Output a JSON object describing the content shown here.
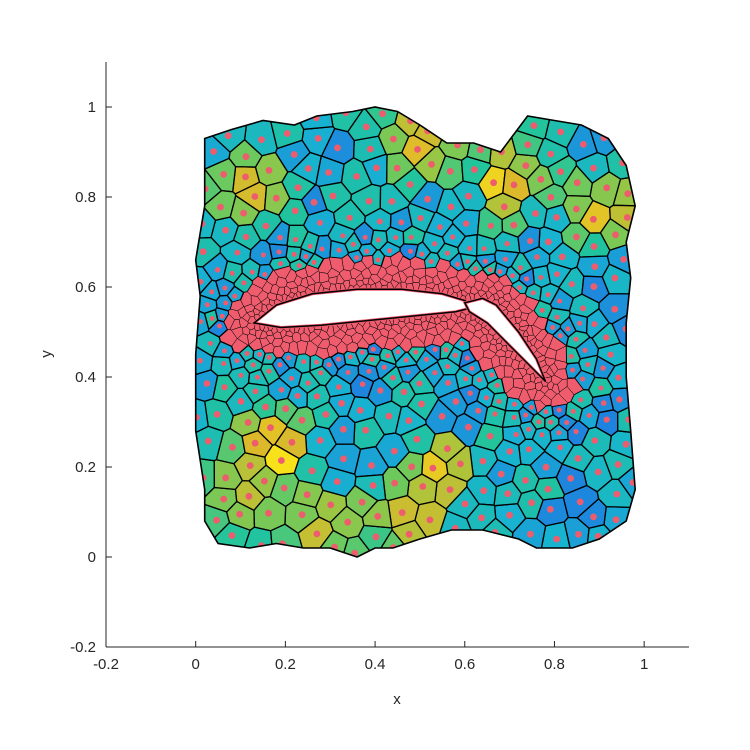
{
  "chart_data": {
    "type": "heatmap",
    "title": "",
    "xlabel": "x",
    "ylabel": "y",
    "xlim": [
      -0.2,
      1.1
    ],
    "ylim": [
      -0.2,
      1.1
    ],
    "xticks": [
      -0.2,
      0,
      0.2,
      0.4,
      0.6,
      0.8,
      1
    ],
    "yticks": [
      -0.2,
      0,
      0.2,
      0.4,
      0.6,
      0.8,
      1
    ],
    "xtick_labels": [
      "-0.2",
      "0",
      "0.2",
      "0.4",
      "0.6",
      "0.8",
      "1"
    ],
    "ytick_labels": [
      "-0.2",
      "0",
      "0.2",
      "0.4",
      "0.6",
      "0.8",
      "1"
    ],
    "grid": false,
    "legend": "none",
    "boundary": [
      [
        0.02,
        0.93
      ],
      [
        0.08,
        0.95
      ],
      [
        0.15,
        0.97
      ],
      [
        0.22,
        0.96
      ],
      [
        0.27,
        0.98
      ],
      [
        0.35,
        0.99
      ],
      [
        0.4,
        1.0
      ],
      [
        0.45,
        0.99
      ],
      [
        0.5,
        0.96
      ],
      [
        0.56,
        0.92
      ],
      [
        0.62,
        0.92
      ],
      [
        0.68,
        0.9
      ],
      [
        0.74,
        0.98
      ],
      [
        0.8,
        0.97
      ],
      [
        0.86,
        0.96
      ],
      [
        0.92,
        0.93
      ],
      [
        0.96,
        0.87
      ],
      [
        0.98,
        0.78
      ],
      [
        0.96,
        0.7
      ],
      [
        0.97,
        0.62
      ],
      [
        0.96,
        0.52
      ],
      [
        0.96,
        0.4
      ],
      [
        0.97,
        0.28
      ],
      [
        0.98,
        0.15
      ],
      [
        0.96,
        0.08
      ],
      [
        0.9,
        0.04
      ],
      [
        0.84,
        0.02
      ],
      [
        0.76,
        0.02
      ],
      [
        0.72,
        0.04
      ],
      [
        0.64,
        0.06
      ],
      [
        0.57,
        0.06
      ],
      [
        0.5,
        0.04
      ],
      [
        0.44,
        0.02
      ],
      [
        0.4,
        0.02
      ],
      [
        0.36,
        0.0
      ],
      [
        0.3,
        0.02
      ],
      [
        0.24,
        0.02
      ],
      [
        0.18,
        0.03
      ],
      [
        0.12,
        0.02
      ],
      [
        0.05,
        0.03
      ],
      [
        0.02,
        0.08
      ],
      [
        0.02,
        0.15
      ],
      [
        0.0,
        0.28
      ],
      [
        0.0,
        0.45
      ],
      [
        0.01,
        0.58
      ],
      [
        0.0,
        0.66
      ],
      [
        0.02,
        0.78
      ]
    ],
    "airfoil": [
      [
        0.13,
        0.52
      ],
      [
        0.18,
        0.56
      ],
      [
        0.26,
        0.585
      ],
      [
        0.36,
        0.595
      ],
      [
        0.46,
        0.595
      ],
      [
        0.55,
        0.585
      ],
      [
        0.6,
        0.57
      ],
      [
        0.62,
        0.555
      ],
      [
        0.58,
        0.545
      ],
      [
        0.48,
        0.535
      ],
      [
        0.38,
        0.525
      ],
      [
        0.28,
        0.515
      ],
      [
        0.19,
        0.51
      ]
    ],
    "flap": [
      [
        0.6,
        0.565
      ],
      [
        0.64,
        0.575
      ],
      [
        0.67,
        0.56
      ],
      [
        0.72,
        0.5
      ],
      [
        0.76,
        0.44
      ],
      [
        0.78,
        0.39
      ],
      [
        0.74,
        0.43
      ],
      [
        0.69,
        0.48
      ],
      [
        0.65,
        0.52
      ],
      [
        0.61,
        0.545
      ]
    ],
    "color_scale": [
      "#1f7be0",
      "#17b3d1",
      "#22c49c",
      "#6cc95e",
      "#a7c53d",
      "#dcb92b",
      "#f7e11a"
    ],
    "seed_color": "#ef5c6e",
    "hotspots": [
      {
        "x": 0.17,
        "y": 0.24,
        "level": 1.0
      },
      {
        "x": 0.11,
        "y": 0.81,
        "level": 0.75
      },
      {
        "x": 0.51,
        "y": 0.93,
        "level": 0.8
      },
      {
        "x": 0.7,
        "y": 0.84,
        "level": 0.8
      },
      {
        "x": 0.91,
        "y": 0.77,
        "level": 0.75
      },
      {
        "x": 0.46,
        "y": 0.08,
        "level": 0.7
      },
      {
        "x": 0.54,
        "y": 0.19,
        "level": 0.65
      },
      {
        "x": 0.28,
        "y": 0.07,
        "level": 0.55
      },
      {
        "x": 0.08,
        "y": 0.12,
        "level": 0.5
      }
    ]
  }
}
